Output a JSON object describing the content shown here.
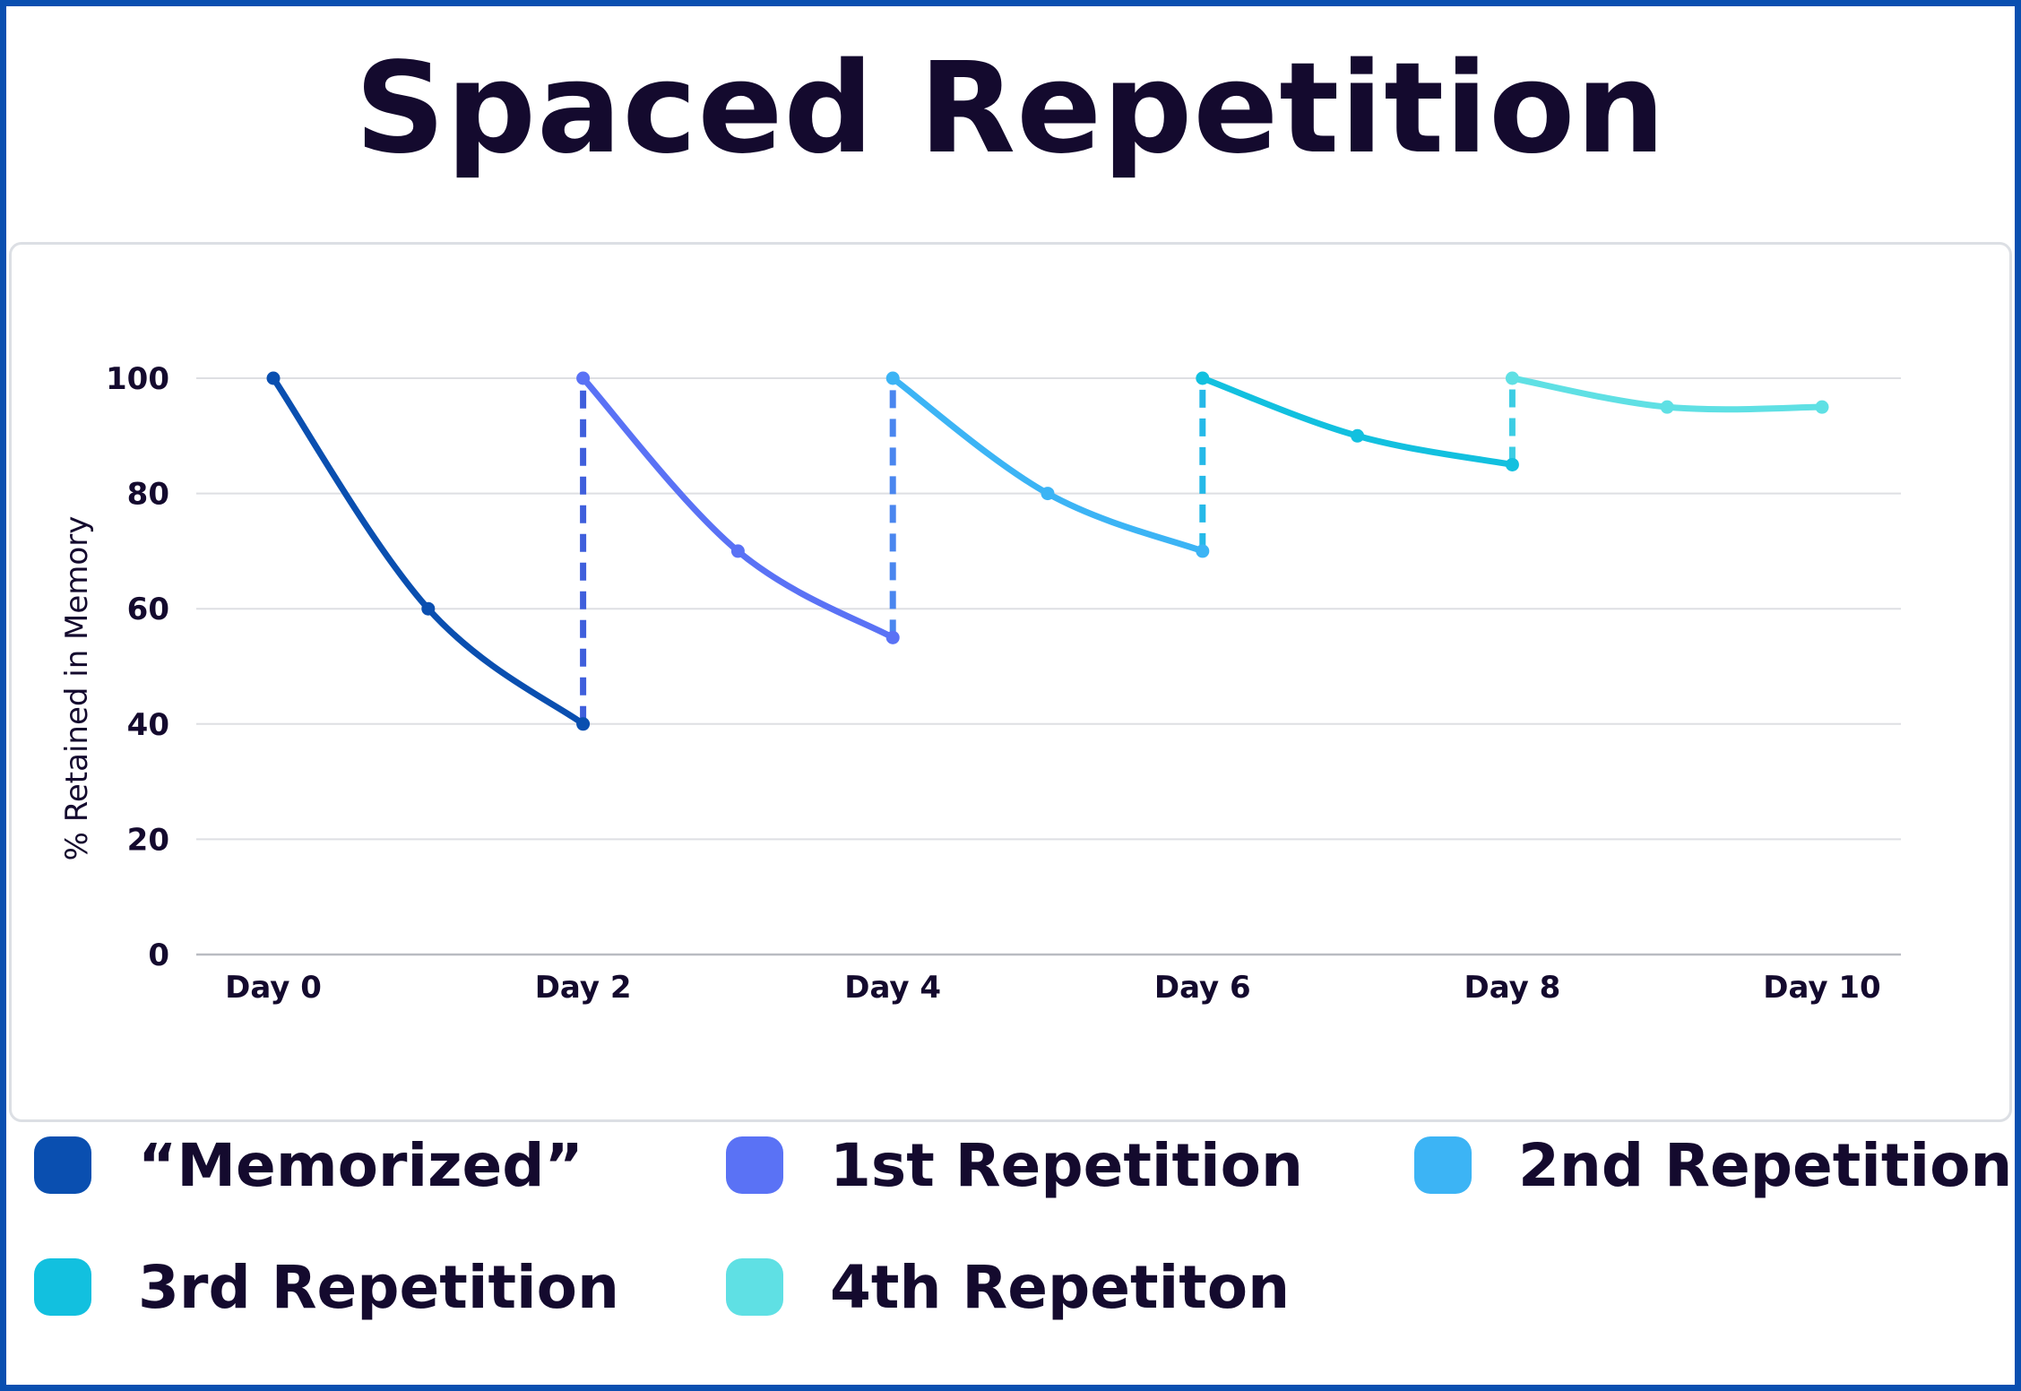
{
  "chart_data": {
    "type": "line",
    "title": "Spaced Repetition",
    "xlabel": "",
    "ylabel": "% Retained in Memory",
    "xlim": [
      0,
      10
    ],
    "ylim": [
      0,
      100
    ],
    "grid": true,
    "y_ticks": [
      "0",
      "20",
      "40",
      "60",
      "80",
      "100"
    ],
    "x_ticks": [
      {
        "x": 0,
        "label": "Day 0"
      },
      {
        "x": 2,
        "label": "Day 2"
      },
      {
        "x": 4,
        "label": "Day 4"
      },
      {
        "x": 6,
        "label": "Day 6"
      },
      {
        "x": 8,
        "label": "Day 8"
      },
      {
        "x": 10,
        "label": "Day 10"
      }
    ],
    "legend_position": "bottom",
    "series": [
      {
        "name": "“Memorized”",
        "color": "#0a4fb0",
        "points": [
          [
            0,
            100
          ],
          [
            1,
            60
          ],
          [
            2,
            40
          ]
        ]
      },
      {
        "name": "1st Repetition",
        "color": "#5a72f5",
        "points": [
          [
            2,
            100
          ],
          [
            3,
            70
          ],
          [
            4,
            55
          ]
        ]
      },
      {
        "name": "2nd Repetition",
        "color": "#3cb4f5",
        "points": [
          [
            4,
            100
          ],
          [
            5,
            80
          ],
          [
            6,
            70
          ]
        ]
      },
      {
        "name": "3rd Repetition",
        "color": "#12c0df",
        "points": [
          [
            6,
            100
          ],
          [
            7,
            90
          ],
          [
            8,
            85
          ]
        ]
      },
      {
        "name": "4th Repetiton",
        "color": "#5fe0e4",
        "points": [
          [
            8,
            100
          ],
          [
            9,
            95
          ],
          [
            10,
            95
          ]
        ]
      }
    ],
    "review_jumps": [
      {
        "x": 2,
        "from": 40,
        "to": 100,
        "color": "#3f5fdc"
      },
      {
        "x": 4,
        "from": 55,
        "to": 100,
        "color": "#4a86ef"
      },
      {
        "x": 6,
        "from": 70,
        "to": 100,
        "color": "#25b9e8"
      },
      {
        "x": 8,
        "from": 85,
        "to": 100,
        "color": "#3ccde4"
      }
    ]
  }
}
